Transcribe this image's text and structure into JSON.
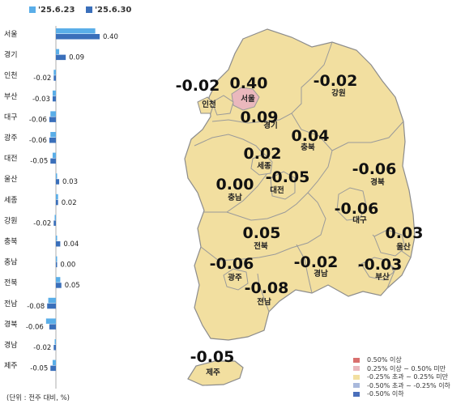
{
  "legend": {
    "series_a": {
      "label": "'25.6.23",
      "color": "#5aaee8"
    },
    "series_b": {
      "label": "'25.6.30",
      "color": "#3a6fba"
    }
  },
  "unit_note": "(단위 : 전주 대비, %)",
  "chart_data": {
    "type": "bar",
    "orientation": "horizontal",
    "series": [
      {
        "name": "'25.6.23",
        "values": [
          0.36,
          0.03,
          -0.02,
          -0.03,
          -0.05,
          -0.05,
          -0.03,
          0.0,
          0.02,
          -0.01,
          0.01,
          0.01,
          0.04,
          -0.07,
          -0.09,
          -0.01,
          -0.03
        ]
      },
      {
        "name": "'25.6.30",
        "values": [
          0.4,
          0.09,
          -0.02,
          -0.03,
          -0.06,
          -0.06,
          -0.05,
          0.03,
          0.02,
          -0.02,
          0.04,
          0.0,
          0.05,
          -0.08,
          -0.06,
          -0.02,
          -0.05
        ]
      }
    ],
    "categories": [
      "서울",
      "경기",
      "인천",
      "부산",
      "대구",
      "광주",
      "대전",
      "울산",
      "세종",
      "강원",
      "충북",
      "충남",
      "전북",
      "전남",
      "경북",
      "경남",
      "제주"
    ],
    "value_labels": [
      "0.40",
      "0.09",
      "-0.02",
      "-0.03",
      "-0.06",
      "-0.06",
      "-0.05",
      "0.03",
      "0.02",
      "-0.02",
      "0.04",
      "0.00",
      "0.05",
      "-0.08",
      "-0.06",
      "-0.02",
      "-0.05"
    ]
  },
  "map": {
    "regions": [
      {
        "id": "incheon",
        "name": "인천",
        "value": "-0.02",
        "class": "neutral"
      },
      {
        "id": "seoul",
        "name": "서울",
        "value": "0.40",
        "class": "rise_mid"
      },
      {
        "id": "gyeonggi",
        "name": "경기",
        "value": "0.09",
        "class": "neutral"
      },
      {
        "id": "gangwon",
        "name": "강원",
        "value": "-0.02",
        "class": "neutral"
      },
      {
        "id": "chungbuk",
        "name": "충북",
        "value": "0.04",
        "class": "neutral"
      },
      {
        "id": "sejong",
        "name": "세종",
        "value": "0.02",
        "class": "neutral"
      },
      {
        "id": "chungnam",
        "name": "충남",
        "value": "0.00",
        "class": "neutral"
      },
      {
        "id": "daejeon",
        "name": "대전",
        "value": "-0.05",
        "class": "neutral"
      },
      {
        "id": "gyeongbuk",
        "name": "경북",
        "value": "-0.06",
        "class": "neutral"
      },
      {
        "id": "daegu",
        "name": "대구",
        "value": "-0.06",
        "class": "neutral"
      },
      {
        "id": "ulsan",
        "name": "울산",
        "value": "0.03",
        "class": "neutral"
      },
      {
        "id": "jeonbuk",
        "name": "전북",
        "value": "0.05",
        "class": "neutral"
      },
      {
        "id": "gwangju",
        "name": "광주",
        "value": "-0.06",
        "class": "neutral"
      },
      {
        "id": "jeonnam",
        "name": "전남",
        "value": "-0.08",
        "class": "neutral"
      },
      {
        "id": "gyeongnam",
        "name": "경남",
        "value": "-0.02",
        "class": "neutral"
      },
      {
        "id": "busan",
        "name": "부산",
        "value": "-0.03",
        "class": "neutral"
      },
      {
        "id": "jeju",
        "name": "제주",
        "value": "-0.05",
        "class": "neutral"
      }
    ],
    "legend": [
      {
        "label": "0.50% 이상",
        "color": "#d9706e"
      },
      {
        "label": "0.25% 이상 ~ 0.50% 미만",
        "color": "#eab8bd"
      },
      {
        "label": "-0.25% 초과 ~ 0.25% 미만",
        "color": "#f2dfa0"
      },
      {
        "label": "-0.50% 초과 ~ -0.25% 이하",
        "color": "#a9b9dc"
      },
      {
        "label": "-0.50% 이하",
        "color": "#4a6fbb"
      }
    ],
    "colors": {
      "neutral": "#f2dfa0",
      "rise_mid": "#eab8bd",
      "border": "#9a9a9a",
      "outline": "#8c8c8c"
    }
  }
}
